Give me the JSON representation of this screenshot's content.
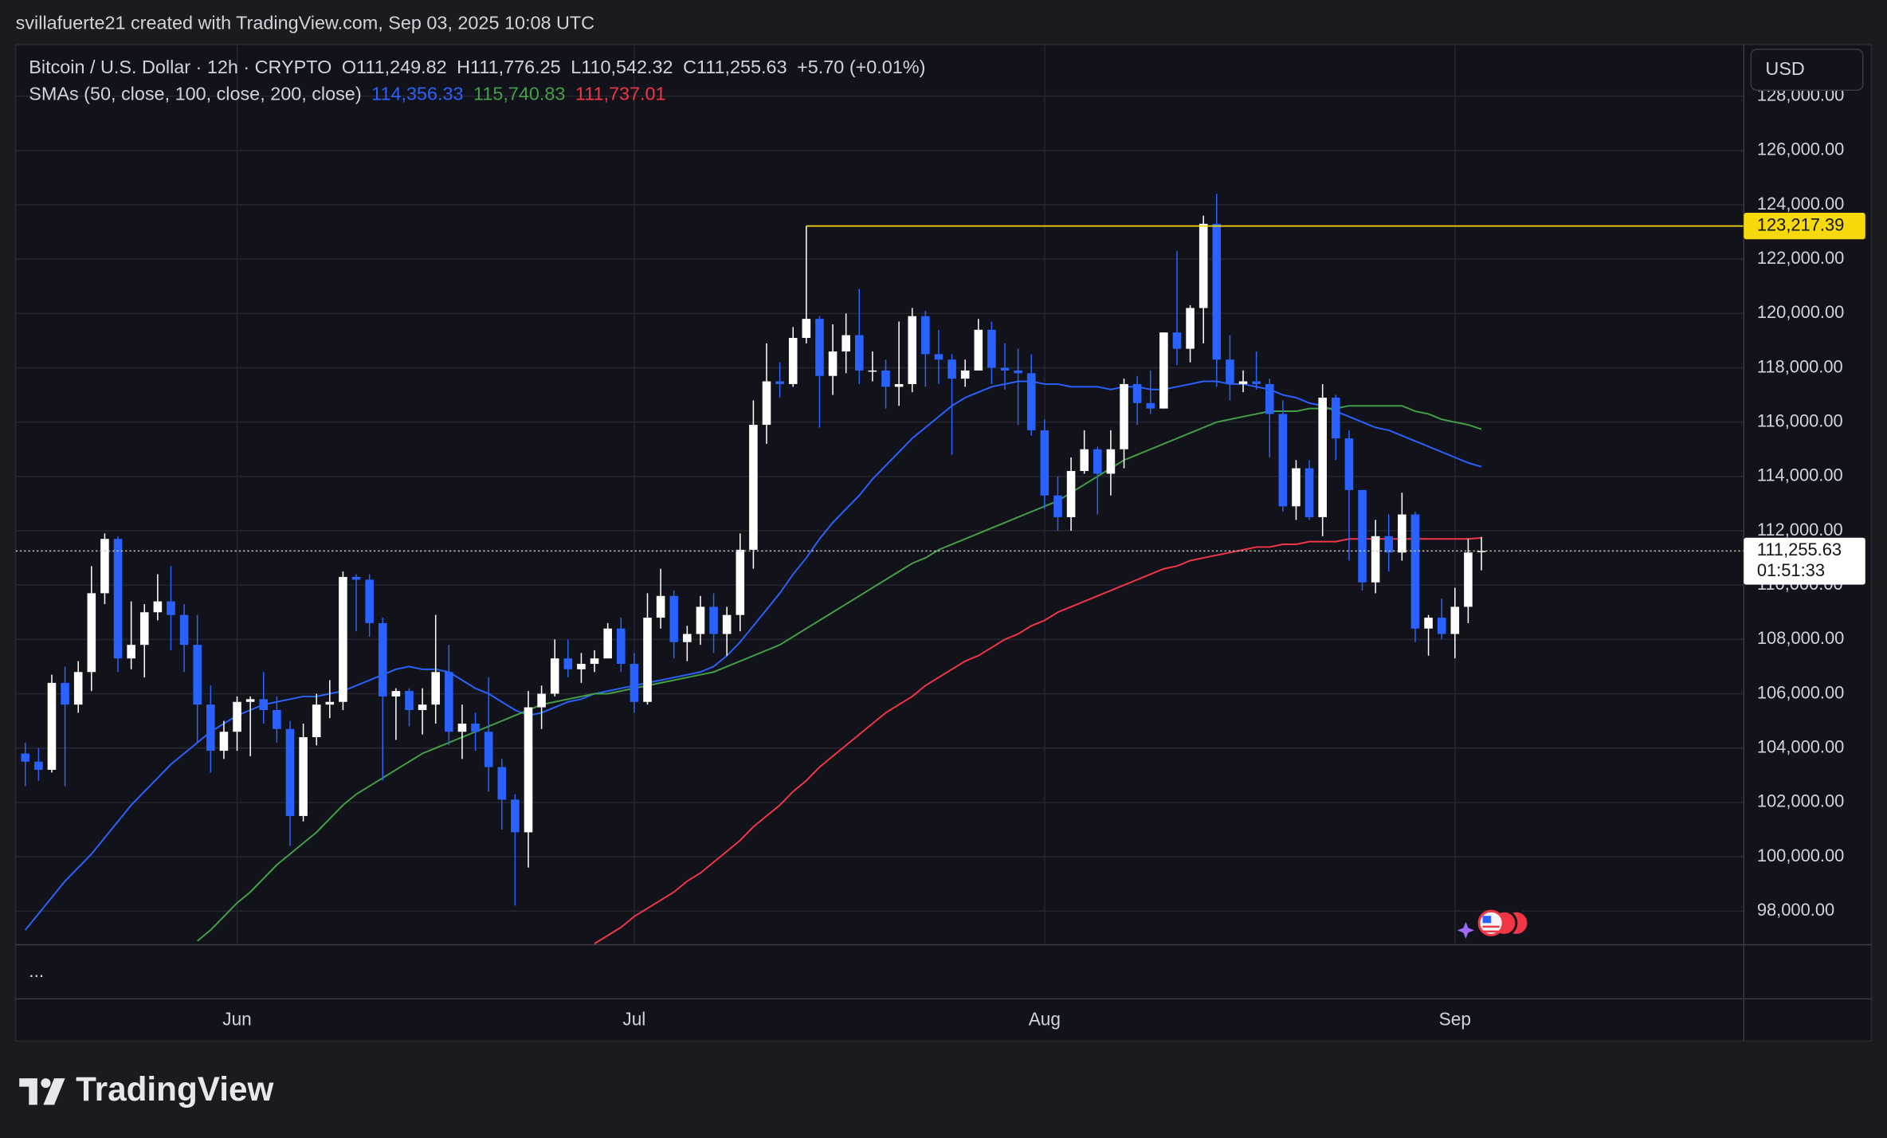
{
  "header": {
    "attribution": "svillafuerte21 created with TradingView.com, Sep 03, 2025 10:08 UTC",
    "logo": "TradingView"
  },
  "chart_data": {
    "type": "candlestick",
    "symbol": "Bitcoin / U.S. Dollar · 12h · CRYPTO",
    "ohlc_text": [
      "O111,249.82",
      "H111,776.25",
      "L110,542.32",
      "C111,255.63",
      "+5.70 (+0.01%)"
    ],
    "indicator_label": "SMAs (50, close, 100, close, 200, close)",
    "currency": "USD",
    "pane_menu": "...",
    "up_color": "#ffffff",
    "down_color": "#2962ff",
    "grid": true,
    "categories": [
      null,
      null,
      null,
      null,
      null,
      null,
      null,
      null,
      null,
      null,
      null,
      null,
      null,
      null,
      null,
      null,
      "Jun",
      null,
      null,
      null,
      null,
      null,
      null,
      null,
      null,
      null,
      null,
      null,
      null,
      null,
      null,
      null,
      null,
      null,
      null,
      null,
      null,
      null,
      null,
      null,
      null,
      null,
      null,
      null,
      null,
      null,
      "Jul",
      null,
      null,
      null,
      null,
      null,
      null,
      null,
      null,
      null,
      null,
      null,
      null,
      null,
      null,
      null,
      null,
      null,
      null,
      null,
      null,
      null,
      null,
      null,
      null,
      null,
      null,
      null,
      null,
      null,
      null,
      "Aug",
      null,
      null,
      null,
      null,
      null,
      null,
      null,
      null,
      null,
      null,
      null,
      null,
      null,
      null,
      null,
      null,
      null,
      null,
      null,
      null,
      null,
      null,
      null,
      null,
      null,
      null,
      null,
      null,
      null,
      null,
      "Sep",
      null,
      null
    ],
    "open": [
      103800,
      103500,
      103200,
      106400,
      105600,
      106800,
      109700,
      111700,
      107300,
      107800,
      109000,
      109400,
      108900,
      107800,
      105600,
      103900,
      104600,
      105700,
      105800,
      105400,
      104700,
      101500,
      104400,
      105600,
      105700,
      110300,
      110200,
      108600,
      105900,
      106100,
      105400,
      105600,
      106800,
      104600,
      104900,
      104600,
      103300,
      102100,
      100900,
      105500,
      106000,
      107300,
      106900,
      107100,
      107300,
      108400,
      107100,
      105700,
      108800,
      109600,
      107900,
      108200,
      109200,
      108200,
      108900,
      111300,
      115900,
      117500,
      117400,
      119100,
      119800,
      117700,
      118600,
      119200,
      117900,
      117900,
      117300,
      117400,
      119900,
      118500,
      118300,
      117600,
      117900,
      119400,
      118000,
      117900,
      117800,
      115700,
      113300,
      112500,
      114200,
      115000,
      114100,
      115000,
      117400,
      116700,
      116500,
      119300,
      118700,
      120200,
      123300,
      118300,
      117400,
      117500,
      117400,
      116300,
      112900,
      114300,
      112500,
      116900,
      115400,
      113500,
      110100,
      111800,
      111200,
      112600,
      108400,
      108800,
      108200,
      109200,
      111249.82
    ],
    "high": [
      104200,
      104000,
      106700,
      107000,
      107200,
      110700,
      111900,
      111800,
      109400,
      109300,
      110400,
      110700,
      109300,
      108900,
      106300,
      105000,
      105900,
      105900,
      106800,
      105900,
      105000,
      104900,
      106000,
      106500,
      110500,
      110400,
      110400,
      108800,
      106200,
      106200,
      106200,
      108900,
      107800,
      105600,
      105300,
      106600,
      103600,
      102300,
      106100,
      106300,
      108000,
      108000,
      107500,
      107600,
      108600,
      108800,
      107500,
      109700,
      110600,
      109800,
      108500,
      109600,
      109700,
      109200,
      111900,
      116800,
      118900,
      118200,
      119500,
      123217.39,
      119900,
      119600,
      120000,
      120900,
      118600,
      118300,
      119700,
      120200,
      120100,
      119400,
      118500,
      118300,
      119800,
      119700,
      118900,
      118700,
      118500,
      116100,
      114000,
      114700,
      115700,
      115100,
      115700,
      117600,
      117700,
      117900,
      119300,
      122300,
      120300,
      123600,
      124400,
      119200,
      117900,
      118600,
      117600,
      116800,
      114600,
      114600,
      117400,
      117000,
      115700,
      113500,
      112400,
      112600,
      113400,
      112700,
      108900,
      109500,
      109900,
      111700,
      111776.25
    ],
    "low": [
      102600,
      102800,
      103100,
      102600,
      105300,
      106100,
      109300,
      106800,
      106900,
      106600,
      108700,
      107600,
      106800,
      104200,
      103100,
      103600,
      103900,
      103700,
      104900,
      104200,
      100400,
      101300,
      104100,
      105100,
      105400,
      108300,
      108100,
      102800,
      104300,
      104800,
      104500,
      104900,
      104100,
      103600,
      103900,
      102400,
      101000,
      98200,
      99600,
      104700,
      105900,
      106600,
      106400,
      106800,
      107300,
      106800,
      105300,
      105600,
      108400,
      107300,
      107200,
      107800,
      107500,
      107400,
      108300,
      110600,
      115200,
      116900,
      117300,
      118900,
      115800,
      117000,
      117800,
      117400,
      117500,
      116500,
      116600,
      117100,
      117300,
      117400,
      114800,
      117300,
      117900,
      117400,
      117200,
      115900,
      115500,
      112800,
      112000,
      112000,
      114100,
      112600,
      113300,
      114300,
      115900,
      116300,
      116500,
      118100,
      118200,
      118900,
      117300,
      116800,
      117100,
      117200,
      114700,
      112700,
      112400,
      112400,
      111800,
      114600,
      110900,
      109800,
      109700,
      110500,
      110900,
      107900,
      107400,
      108000,
      107300,
      108600,
      110542.32
    ],
    "close": [
      103500,
      103200,
      106400,
      105600,
      106800,
      109700,
      111700,
      107300,
      107800,
      109000,
      109400,
      108900,
      107800,
      105600,
      103900,
      104600,
      105700,
      105800,
      105400,
      104700,
      101500,
      104400,
      105600,
      105700,
      110300,
      110200,
      108600,
      105900,
      106100,
      105400,
      105600,
      106800,
      104600,
      104900,
      104600,
      103300,
      102100,
      100900,
      105500,
      106000,
      107300,
      106900,
      107100,
      107300,
      108400,
      107100,
      105700,
      108800,
      109600,
      107900,
      108200,
      109200,
      108200,
      108900,
      111300,
      115900,
      117500,
      117400,
      119100,
      119800,
      117700,
      118600,
      119200,
      117900,
      117900,
      117300,
      117400,
      119900,
      118500,
      118300,
      117600,
      117900,
      119400,
      118000,
      117900,
      117800,
      115700,
      113300,
      112500,
      114200,
      115000,
      114100,
      115000,
      117400,
      116700,
      116500,
      119300,
      118700,
      120200,
      123300,
      118300,
      117400,
      117500,
      117400,
      116300,
      112900,
      114300,
      112500,
      116900,
      115400,
      113500,
      110100,
      111800,
      111200,
      112600,
      108400,
      108800,
      108200,
      109200,
      111200,
      111255.63
    ],
    "series": [
      {
        "color": "#2962ff",
        "last_label": "114,356.33",
        "values": [
          97300,
          97900,
          98500,
          99100,
          99600,
          100100,
          100700,
          101300,
          101900,
          102400,
          102900,
          103400,
          103800,
          104200,
          104600,
          104900,
          105200,
          105400,
          105600,
          105700,
          105800,
          105900,
          105900,
          106000,
          106100,
          106300,
          106500,
          106700,
          106900,
          107000,
          106900,
          106900,
          106800,
          106500,
          106200,
          106000,
          105700,
          105400,
          105200,
          105300,
          105500,
          105700,
          105800,
          106000,
          106100,
          106200,
          106300,
          106400,
          106500,
          106600,
          106700,
          106800,
          107000,
          107400,
          107900,
          108500,
          109100,
          109700,
          110400,
          111000,
          111700,
          112300,
          112800,
          113300,
          113900,
          114400,
          114900,
          115400,
          115800,
          116200,
          116600,
          116900,
          117100,
          117300,
          117400,
          117500,
          117500,
          117400,
          117400,
          117300,
          117300,
          117300,
          117200,
          117300,
          117300,
          117200,
          117200,
          117300,
          117400,
          117500,
          117500,
          117400,
          117400,
          117300,
          117200,
          117000,
          116900,
          116700,
          116600,
          116400,
          116200,
          116000,
          115800,
          115700,
          115500,
          115300,
          115100,
          114900,
          114700,
          114500,
          114356.33
        ]
      },
      {
        "color": "#43a047",
        "last_label": "115,740.83",
        "values": [
          null,
          null,
          null,
          null,
          null,
          null,
          null,
          null,
          null,
          null,
          null,
          null,
          null,
          96900,
          97300,
          97800,
          98300,
          98700,
          99200,
          99700,
          100100,
          100500,
          100900,
          101400,
          101900,
          102300,
          102600,
          102900,
          103200,
          103500,
          103800,
          104000,
          104200,
          104400,
          104600,
          104800,
          105000,
          105200,
          105400,
          105600,
          105700,
          105800,
          105900,
          106000,
          106000,
          106100,
          106200,
          106300,
          106400,
          106500,
          106600,
          106700,
          106800,
          107000,
          107200,
          107400,
          107600,
          107800,
          108100,
          108400,
          108700,
          109000,
          109300,
          109600,
          109900,
          110200,
          110500,
          110800,
          111000,
          111300,
          111500,
          111700,
          111900,
          112100,
          112300,
          112500,
          112700,
          112900,
          113100,
          113400,
          113700,
          114000,
          114300,
          114600,
          114800,
          115000,
          115200,
          115400,
          115600,
          115800,
          116000,
          116100,
          116200,
          116300,
          116400,
          116400,
          116400,
          116500,
          116500,
          116500,
          116600,
          116600,
          116600,
          116600,
          116600,
          116400,
          116300,
          116100,
          116000,
          115900,
          115740.83
        ]
      },
      {
        "color": "#f23645",
        "last_label": "111,737.01",
        "values": [
          null,
          null,
          null,
          null,
          null,
          null,
          null,
          null,
          null,
          null,
          null,
          null,
          null,
          null,
          null,
          null,
          null,
          null,
          null,
          null,
          null,
          null,
          null,
          null,
          null,
          null,
          null,
          null,
          null,
          null,
          null,
          null,
          null,
          null,
          null,
          null,
          null,
          null,
          null,
          null,
          null,
          null,
          null,
          96800,
          97100,
          97400,
          97800,
          98100,
          98400,
          98700,
          99100,
          99400,
          99800,
          100200,
          100600,
          101100,
          101500,
          101900,
          102400,
          102800,
          103300,
          103700,
          104100,
          104500,
          104900,
          105300,
          105600,
          105900,
          106300,
          106600,
          106900,
          107200,
          107400,
          107700,
          108000,
          108200,
          108500,
          108700,
          109000,
          109200,
          109400,
          109600,
          109800,
          110000,
          110200,
          110400,
          110600,
          110700,
          110900,
          111000,
          111100,
          111200,
          111300,
          111400,
          111400,
          111500,
          111500,
          111600,
          111600,
          111600,
          111700,
          111700,
          111700,
          111700,
          111700,
          111700,
          111700,
          111700,
          111700,
          111700,
          111737.01
        ]
      }
    ],
    "level": {
      "value": 123217.39,
      "label": "123,217.39",
      "color": "#f5d90a"
    },
    "price_line": {
      "value": 111255.63,
      "label": "111,255.63",
      "countdown": "01:51:33"
    },
    "ylim": [
      96760,
      129900
    ],
    "yticks": [
      {
        "value": 98000,
        "label": "98,000.00"
      },
      {
        "value": 100000,
        "label": "100,000.00"
      },
      {
        "value": 102000,
        "label": "102,000.00"
      },
      {
        "value": 104000,
        "label": "104,000.00"
      },
      {
        "value": 106000,
        "label": "106,000.00"
      },
      {
        "value": 108000,
        "label": "108,000.00"
      },
      {
        "value": 110000,
        "label": "110,000.00"
      },
      {
        "value": 112000,
        "label": "112,000.00"
      },
      {
        "value": 114000,
        "label": "114,000.00"
      },
      {
        "value": 116000,
        "label": "116,000.00"
      },
      {
        "value": 118000,
        "label": "118,000.00"
      },
      {
        "value": 120000,
        "label": "120,000.00"
      },
      {
        "value": 122000,
        "label": "122,000.00"
      },
      {
        "value": 124000,
        "label": "124,000.00"
      },
      {
        "value": 126000,
        "label": "126,000.00"
      },
      {
        "value": 128000,
        "label": "128,000.00"
      }
    ]
  }
}
